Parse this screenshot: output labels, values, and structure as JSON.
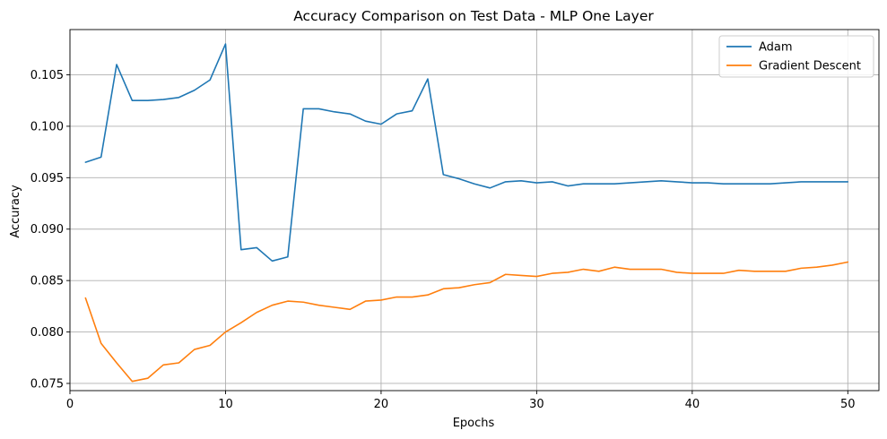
{
  "chart_data": {
    "type": "line",
    "title": "Accuracy Comparison on Test Data - MLP One Layer",
    "xlabel": "Epochs",
    "ylabel": "Accuracy",
    "xlim": [
      0,
      52
    ],
    "ylim": [
      0.0743,
      0.1094
    ],
    "xticks": [
      0,
      10,
      20,
      30,
      40,
      50
    ],
    "yticks": [
      0.075,
      0.08,
      0.085,
      0.09,
      0.095,
      0.1,
      0.105
    ],
    "ytick_labels": [
      "0.075",
      "0.080",
      "0.085",
      "0.090",
      "0.095",
      "0.100",
      "0.105"
    ],
    "grid": true,
    "legend_position": "top-right",
    "x": [
      1,
      2,
      3,
      4,
      5,
      6,
      7,
      8,
      9,
      10,
      11,
      12,
      13,
      14,
      15,
      16,
      17,
      18,
      19,
      20,
      21,
      22,
      23,
      24,
      25,
      26,
      27,
      28,
      29,
      30,
      31,
      32,
      33,
      34,
      35,
      36,
      37,
      38,
      39,
      40,
      41,
      42,
      43,
      44,
      45,
      46,
      47,
      48,
      49,
      50
    ],
    "series": [
      {
        "name": "Adam",
        "color": "#1f77b4",
        "values": [
          0.0965,
          0.097,
          0.106,
          0.1025,
          0.1025,
          0.1026,
          0.1028,
          0.1035,
          0.1045,
          0.108,
          0.088,
          0.0882,
          0.0869,
          0.0873,
          0.1017,
          0.1017,
          0.1014,
          0.1012,
          0.1005,
          0.1002,
          0.1012,
          0.1015,
          0.1046,
          0.0953,
          0.0949,
          0.0944,
          0.094,
          0.0946,
          0.0947,
          0.0945,
          0.0946,
          0.0942,
          0.0944,
          0.0944,
          0.0944,
          0.0945,
          0.0946,
          0.0947,
          0.0946,
          0.0945,
          0.0945,
          0.0944,
          0.0944,
          0.0944,
          0.0944,
          0.0945,
          0.0946,
          0.0946,
          0.0946,
          0.0946
        ]
      },
      {
        "name": "Gradient Descent",
        "color": "#ff7f0e",
        "values": [
          0.0833,
          0.0789,
          0.077,
          0.0752,
          0.0755,
          0.0768,
          0.077,
          0.0783,
          0.0787,
          0.08,
          0.0809,
          0.0819,
          0.0826,
          0.083,
          0.0829,
          0.0826,
          0.0824,
          0.0822,
          0.083,
          0.0831,
          0.0834,
          0.0834,
          0.0836,
          0.0842,
          0.0843,
          0.0846,
          0.0848,
          0.0856,
          0.0855,
          0.0854,
          0.0857,
          0.0858,
          0.0861,
          0.0859,
          0.0863,
          0.0861,
          0.0861,
          0.0861,
          0.0858,
          0.0857,
          0.0857,
          0.0857,
          0.086,
          0.0859,
          0.0859,
          0.0859,
          0.0862,
          0.0863,
          0.0865,
          0.0868
        ]
      }
    ]
  }
}
